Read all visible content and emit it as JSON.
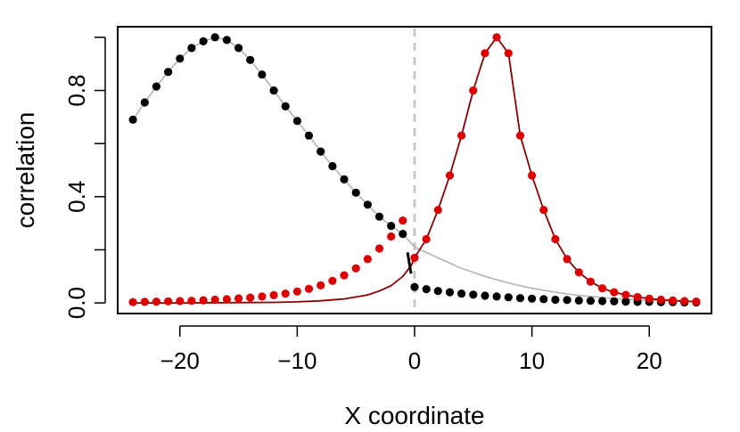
{
  "chart_data": {
    "type": "scatter",
    "title": "",
    "xlabel": "X coordinate",
    "ylabel": "correlation",
    "xlim": [
      -25.3,
      25.3
    ],
    "ylim": [
      -0.04,
      1.04
    ],
    "xticks": [
      -20,
      -10,
      0,
      10,
      20
    ],
    "xtick_labels": [
      "−20",
      "−10",
      "0",
      "10",
      "20"
    ],
    "yticks": [
      0.0,
      0.4,
      0.8
    ],
    "ytick_labels": [
      "0.0",
      "0.4",
      "0.8"
    ],
    "yticks_minor": [
      0.2,
      0.6,
      1.0
    ],
    "grid": false,
    "legend": "none",
    "vline": {
      "x": 0,
      "color": "#c8c8c8",
      "style": "dashed"
    },
    "colors": {
      "black_series": "#000000",
      "red_series": "#dd0000",
      "gray_curve": "#b4b4b4",
      "darkred_curve": "#8b0000"
    },
    "series": [
      {
        "color": "#000000",
        "kind": "points",
        "x": [
          -24,
          -23,
          -22,
          -21,
          -20,
          -19,
          -18,
          -17,
          -16,
          -15,
          -14,
          -13,
          -12,
          -11,
          -10,
          -9,
          -8,
          -7,
          -6,
          -5,
          -4,
          -3,
          -2,
          -1,
          0,
          1,
          2,
          3,
          4,
          5,
          6,
          7,
          8,
          9,
          10,
          11,
          12,
          13,
          14,
          15,
          16,
          17,
          18,
          19,
          20,
          21,
          22,
          23,
          24
        ],
        "y": [
          0.69,
          0.755,
          0.815,
          0.87,
          0.92,
          0.96,
          0.985,
          1.0,
          0.99,
          0.96,
          0.915,
          0.86,
          0.8,
          0.74,
          0.685,
          0.63,
          0.57,
          0.515,
          0.465,
          0.415,
          0.37,
          0.325,
          0.29,
          0.26,
          0.06,
          0.052,
          0.045,
          0.04,
          0.035,
          0.031,
          0.027,
          0.024,
          0.021,
          0.018,
          0.016,
          0.014,
          0.012,
          0.011,
          0.009,
          0.008,
          0.007,
          0.006,
          0.005,
          0.004,
          0.004,
          0.003,
          0.003,
          0.002,
          0.002
        ]
      },
      {
        "color": "#dd0000",
        "kind": "points",
        "x": [
          -24,
          -23,
          -22,
          -21,
          -20,
          -19,
          -18,
          -17,
          -16,
          -15,
          -14,
          -13,
          -12,
          -11,
          -10,
          -9,
          -8,
          -7,
          -6,
          -5,
          -4,
          -3,
          -2,
          -1,
          0,
          1,
          2,
          3,
          4,
          5,
          6,
          7,
          8,
          9,
          10,
          11,
          12,
          13,
          14,
          15,
          16,
          17,
          18,
          19,
          20,
          21,
          22,
          23,
          24
        ],
        "y": [
          0.003,
          0.004,
          0.005,
          0.006,
          0.007,
          0.008,
          0.01,
          0.012,
          0.014,
          0.017,
          0.02,
          0.024,
          0.029,
          0.035,
          0.043,
          0.053,
          0.066,
          0.083,
          0.104,
          0.13,
          0.165,
          0.205,
          0.25,
          0.31,
          0.17,
          0.24,
          0.35,
          0.48,
          0.63,
          0.8,
          0.94,
          1.0,
          0.94,
          0.63,
          0.48,
          0.35,
          0.24,
          0.165,
          0.115,
          0.08,
          0.055,
          0.04,
          0.03,
          0.022,
          0.016,
          0.012,
          0.009,
          0.007,
          0.005
        ]
      }
    ],
    "curves": [
      {
        "color": "#b4b4b4",
        "x": [
          -24,
          -23,
          -22,
          -21,
          -20,
          -19,
          -18,
          -17,
          -16,
          -15,
          -14,
          -13,
          -12,
          -11,
          -10,
          -9,
          -8,
          -7,
          -6,
          -5,
          -4,
          -3,
          -2,
          -1,
          0,
          2,
          4,
          6,
          8,
          10,
          12,
          14,
          16,
          18,
          20,
          22,
          24
        ],
        "y": [
          0.69,
          0.755,
          0.815,
          0.87,
          0.92,
          0.96,
          0.985,
          1.0,
          0.99,
          0.96,
          0.915,
          0.86,
          0.8,
          0.74,
          0.685,
          0.63,
          0.57,
          0.515,
          0.465,
          0.415,
          0.37,
          0.325,
          0.29,
          0.26,
          0.21,
          0.17,
          0.13,
          0.1,
          0.075,
          0.055,
          0.04,
          0.028,
          0.02,
          0.014,
          0.01,
          0.007,
          0.005
        ]
      },
      {
        "color": "#8b0000",
        "x": [
          -24,
          -20,
          -16,
          -12,
          -10,
          -8,
          -6,
          -4,
          -3,
          -2,
          -1,
          -0.3,
          0,
          1,
          2,
          3,
          4,
          5,
          6,
          7,
          8,
          9,
          10,
          11,
          12,
          13,
          14,
          15,
          16,
          17,
          18,
          19,
          20,
          21,
          22,
          23,
          24
        ],
        "y": [
          0.0,
          0.0,
          0.001,
          0.002,
          0.004,
          0.008,
          0.015,
          0.03,
          0.045,
          0.065,
          0.1,
          0.14,
          0.17,
          0.24,
          0.35,
          0.48,
          0.63,
          0.8,
          0.94,
          1.0,
          0.94,
          0.63,
          0.48,
          0.35,
          0.24,
          0.165,
          0.115,
          0.08,
          0.055,
          0.04,
          0.03,
          0.022,
          0.016,
          0.012,
          0.009,
          0.007,
          0.005
        ]
      }
    ],
    "discontinuity_mark": {
      "x": [
        -0.6,
        -0.3
      ],
      "y": [
        0.19,
        0.11
      ],
      "color": "#000000"
    }
  }
}
